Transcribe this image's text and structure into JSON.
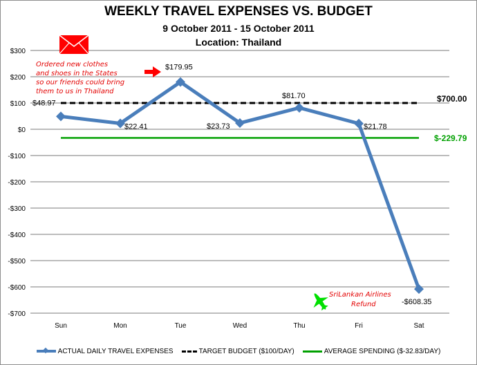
{
  "chart_data": {
    "type": "line",
    "title": "WEEKLY TRAVEL EXPENSES VS. BUDGET",
    "subtitle": "9 October 2011 - 15 October 2011",
    "subtitle2": "Location: Thailand",
    "xlabel": "",
    "ylabel": "",
    "categories": [
      "Sun",
      "Mon",
      "Tue",
      "Wed",
      "Thu",
      "Fri",
      "Sat"
    ],
    "series": [
      {
        "name": "ACTUAL DAILY TRAVEL EXPENSES",
        "values": [
          48.97,
          22.41,
          179.95,
          23.73,
          81.7,
          21.78,
          -608.35
        ],
        "color": "#4a7ebb",
        "style": "solid-with-diamond-markers"
      },
      {
        "name": "TARGET BUDGET ($100/DAY)",
        "values": [
          100,
          100,
          100,
          100,
          100,
          100,
          100
        ],
        "color": "#000000",
        "style": "dashed"
      },
      {
        "name": "AVERAGE SPENDING ($-32.83/DAY)",
        "values": [
          -32.83,
          -32.83,
          -32.83,
          -32.83,
          -32.83,
          -32.83,
          -32.83
        ],
        "color": "#00a000",
        "style": "solid"
      }
    ],
    "data_labels": [
      "$48.97",
      "$22.41",
      "$179.95",
      "$23.73",
      "$81.70",
      "$21.78",
      "-$608.35"
    ],
    "yticks": [
      "$300",
      "$200",
      "$100",
      "$0",
      "-$100",
      "-$200",
      "-$300",
      "-$400",
      "-$500",
      "-$600",
      "-$700"
    ],
    "ylim": [
      -700,
      300
    ],
    "grid": true,
    "legend_position": "bottom",
    "annotations": {
      "target_total": "$700.00",
      "average_total": "$-229.79",
      "tuesday_note": [
        "Ordered new clothes",
        "and shoes in the States",
        "so our friends could bring",
        "them to us in Thailand"
      ],
      "saturday_note": [
        "SriLankan Airlines",
        "Refund"
      ]
    }
  },
  "colors": {
    "actual": "#4a7ebb",
    "target": "#000000",
    "average": "#00a000",
    "note": "#e30000",
    "envelope": "#ff0000",
    "plane": "#00e000",
    "grid": "#a6a6a6"
  },
  "icons": {
    "envelope": "envelope-icon",
    "arrow": "arrow-right-icon",
    "plane": "airplane-icon"
  }
}
